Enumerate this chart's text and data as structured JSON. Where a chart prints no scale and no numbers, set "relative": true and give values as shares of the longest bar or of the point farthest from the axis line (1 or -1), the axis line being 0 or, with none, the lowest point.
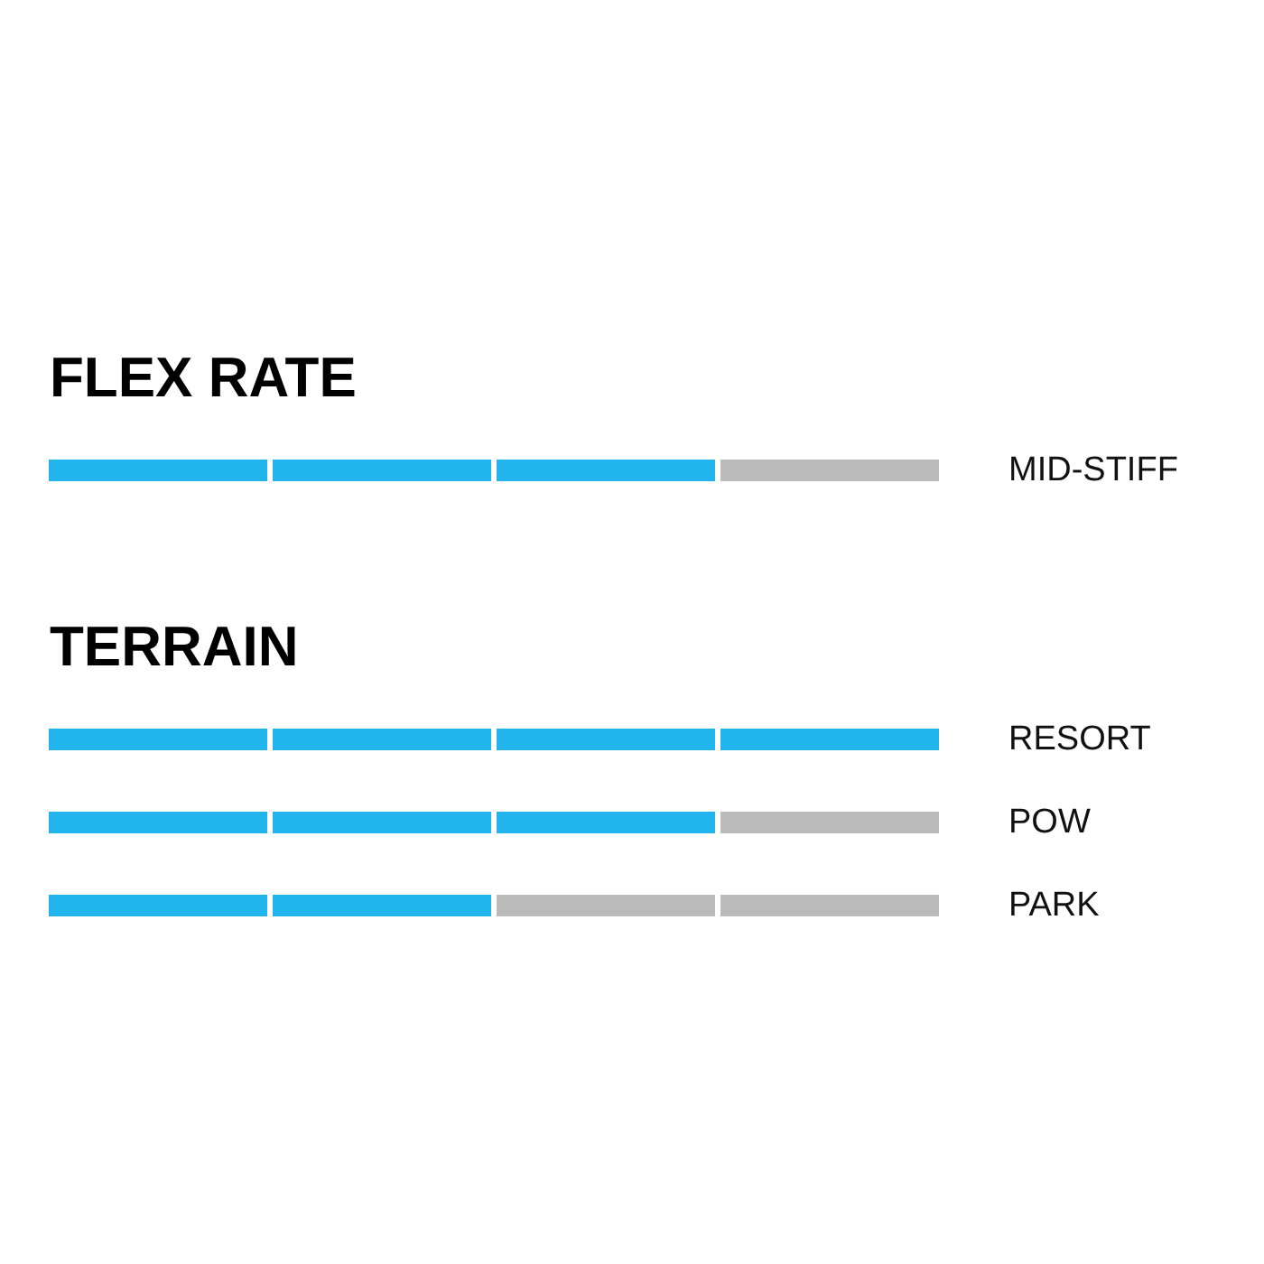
{
  "chart_data": [
    {
      "type": "bar",
      "title": "FLEX RATE",
      "orientation": "horizontal",
      "stacked": true,
      "relative": true,
      "categories": [
        "MID-STIFF"
      ],
      "series": [
        {
          "values": [
            0.25
          ],
          "colors": [
            "#22b4ec"
          ]
        },
        {
          "values": [
            0.25
          ],
          "colors": [
            "#22b4ec"
          ]
        },
        {
          "values": [
            0.25
          ],
          "colors": [
            "#22b4ec"
          ]
        },
        {
          "values": [
            0.25
          ],
          "colors": [
            "#bbbbbb"
          ]
        }
      ]
    },
    {
      "type": "bar",
      "title": "TERRAIN",
      "orientation": "horizontal",
      "stacked": true,
      "relative": true,
      "categories": [
        "RESORT",
        "POW",
        "PARK"
      ],
      "series": [
        {
          "values": [
            0.25,
            0.25,
            0.25
          ],
          "colors": [
            "#22b4ec",
            "#22b4ec",
            "#22b4ec"
          ]
        },
        {
          "values": [
            0.25,
            0.25,
            0.25
          ],
          "colors": [
            "#22b4ec",
            "#22b4ec",
            "#22b4ec"
          ]
        },
        {
          "values": [
            0.25,
            0.25,
            0.25
          ],
          "colors": [
            "#22b4ec",
            "#22b4ec",
            "#bbbbbb"
          ]
        },
        {
          "values": [
            0.25,
            0.25,
            0.25
          ],
          "colors": [
            "#22b4ec",
            "#bbbbbb",
            "#bbbbbb"
          ]
        }
      ]
    }
  ]
}
